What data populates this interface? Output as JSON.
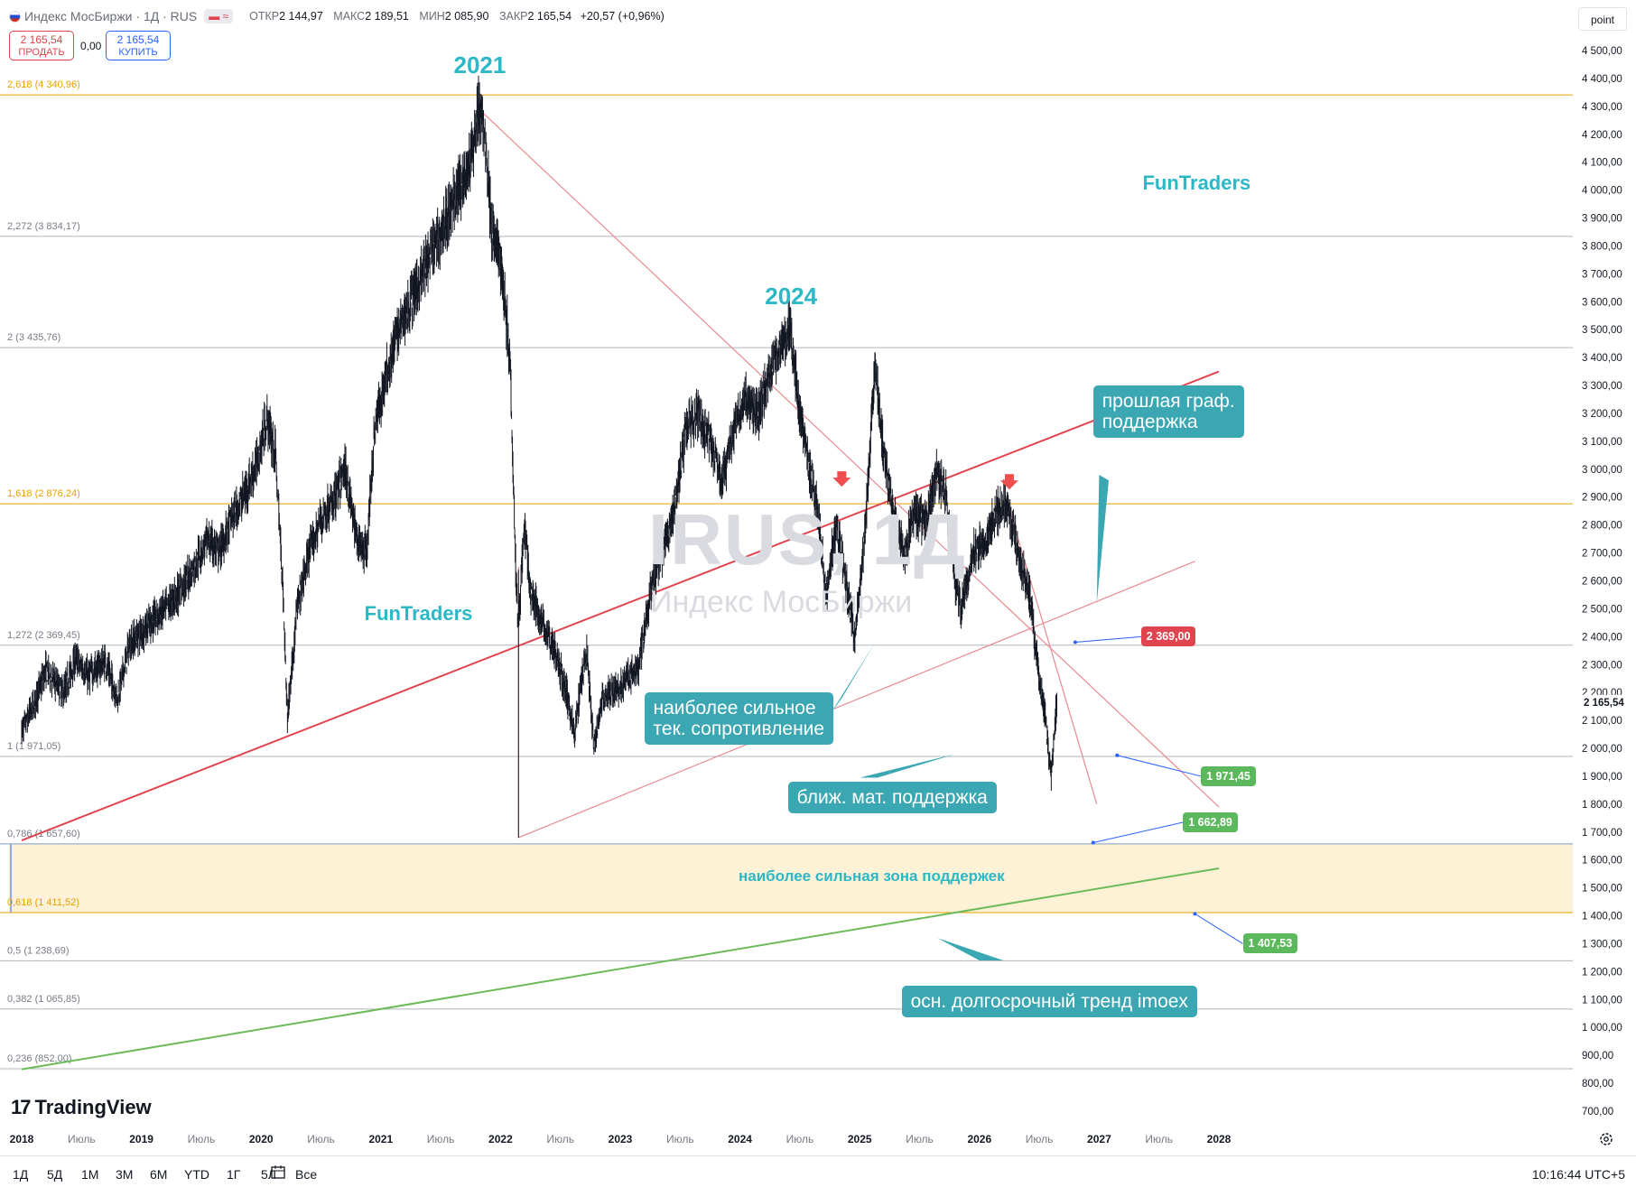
{
  "header": {
    "symbol_title": "Индекс МосБиржи · 1Д · RUS",
    "pill_label": "▬ ≈",
    "open_label": "ОТКР",
    "open_value": "2 144,97",
    "high_label": "МАКС",
    "high_value": "2 189,51",
    "low_label": "МИН",
    "low_value": "2 085,90",
    "close_label": "ЗАКР",
    "close_value": "2 165,54",
    "change_value": "+20,57 (+0,96%)"
  },
  "trade": {
    "sell_price": "2 165,54",
    "sell_label": "ПРОДАТЬ",
    "spread": "0,00",
    "buy_price": "2 165,54",
    "buy_label": "КУПИТЬ"
  },
  "toolbar": {
    "point_button": "point"
  },
  "watermark": {
    "symbol": "IRUS, 1Д",
    "name": "Индекс МосБиржи"
  },
  "brand": {
    "logo_text": "TradingView"
  },
  "bottom": {
    "timeframes": [
      "1Д",
      "5Д",
      "1М",
      "3М",
      "6М",
      "YTD",
      "1Г",
      "5Л",
      "Все"
    ],
    "clock": "10:16:44 UTC+5"
  },
  "colors": {
    "candle": "#131722",
    "fib_gold": "#e8a000",
    "fib_gray": "#787b86",
    "trend_red": "#e0454f",
    "trend_pink": "#e88a90",
    "trend_green": "#6cbb5a",
    "zone_fill": "#fdf1d6",
    "accent_teal": "#2cb8c6"
  },
  "chart_data": {
    "type": "candlestick",
    "title": "",
    "xlabel": "",
    "ylabel": "",
    "x_tick_labels": [
      "2018",
      "Июль",
      "2019",
      "Июль",
      "2020",
      "Июль",
      "2021",
      "Июль",
      "2022",
      "Июль",
      "2023",
      "Июль",
      "2024",
      "Июль",
      "2025",
      "Июль",
      "2026",
      "Июль",
      "2027",
      "Июль",
      "2028"
    ],
    "x_tick_years": [
      2018,
      2018.5,
      2019,
      2019.5,
      2020,
      2020.5,
      2021,
      2021.5,
      2022,
      2022.5,
      2023,
      2023.5,
      2024,
      2024.5,
      2025,
      2025.5,
      2026,
      2026.5,
      2027,
      2027.5,
      2028
    ],
    "y_ticks": [
      700,
      800,
      900,
      1000,
      1100,
      1200,
      1300,
      1400,
      1500,
      1600,
      1700,
      1800,
      1900,
      2000,
      2100,
      2200,
      2300,
      2400,
      2500,
      2600,
      2700,
      2800,
      2900,
      3000,
      3100,
      3200,
      3300,
      3400,
      3500,
      3600,
      3700,
      3800,
      3900,
      4000,
      4100,
      4200,
      4300,
      4400,
      4500
    ],
    "y_tick_labels": [
      "700,00",
      "800,00",
      "900,00",
      "1 000,00",
      "1 100,00",
      "1 200,00",
      "1 300,00",
      "1 400,00",
      "1 500,00",
      "1 600,00",
      "1 700,00",
      "1 800,00",
      "1 900,00",
      "2 000,00",
      "2 100,00",
      "2 200,00",
      "2 300,00",
      "2 400,00",
      "2 500,00",
      "2 600,00",
      "2 700,00",
      "2 800,00",
      "2 900,00",
      "3 000,00",
      "3 100,00",
      "3 200,00",
      "3 300,00",
      "3 400,00",
      "3 500,00",
      "3 600,00",
      "3 700,00",
      "3 800,00",
      "3 900,00",
      "4 000,00",
      "4 100,00",
      "4 200,00",
      "4 300,00",
      "4 400,00",
      "4 500,00"
    ],
    "current_price": 2165.54,
    "current_price_label": "2 165,54",
    "price_path": [
      [
        2018.0,
        2060
      ],
      [
        2018.1,
        2150
      ],
      [
        2018.2,
        2280
      ],
      [
        2018.35,
        2200
      ],
      [
        2018.45,
        2320
      ],
      [
        2018.55,
        2260
      ],
      [
        2018.7,
        2310
      ],
      [
        2018.8,
        2180
      ],
      [
        2018.9,
        2370
      ],
      [
        2019.05,
        2440
      ],
      [
        2019.2,
        2500
      ],
      [
        2019.35,
        2580
      ],
      [
        2019.45,
        2660
      ],
      [
        2019.55,
        2750
      ],
      [
        2019.65,
        2700
      ],
      [
        2019.75,
        2820
      ],
      [
        2019.85,
        2900
      ],
      [
        2019.95,
        3000
      ],
      [
        2020.05,
        3180
      ],
      [
        2020.12,
        3050
      ],
      [
        2020.18,
        2600
      ],
      [
        2020.22,
        2110
      ],
      [
        2020.3,
        2500
      ],
      [
        2020.4,
        2700
      ],
      [
        2020.5,
        2820
      ],
      [
        2020.6,
        2880
      ],
      [
        2020.7,
        3000
      ],
      [
        2020.8,
        2750
      ],
      [
        2020.88,
        2700
      ],
      [
        2020.95,
        3150
      ],
      [
        2021.05,
        3350
      ],
      [
        2021.15,
        3500
      ],
      [
        2021.25,
        3600
      ],
      [
        2021.35,
        3700
      ],
      [
        2021.45,
        3800
      ],
      [
        2021.55,
        3900
      ],
      [
        2021.65,
        4000
      ],
      [
        2021.75,
        4100
      ],
      [
        2021.82,
        4290
      ],
      [
        2021.87,
        4200
      ],
      [
        2021.93,
        3850
      ],
      [
        2022.0,
        3750
      ],
      [
        2022.08,
        3400
      ],
      [
        2022.13,
        2600
      ],
      [
        2022.15,
        2450
      ],
      [
        2022.2,
        2800
      ],
      [
        2022.25,
        2550
      ],
      [
        2022.35,
        2450
      ],
      [
        2022.45,
        2350
      ],
      [
        2022.55,
        2200
      ],
      [
        2022.62,
        2050
      ],
      [
        2022.68,
        2270
      ],
      [
        2022.72,
        2350
      ],
      [
        2022.78,
        2000
      ],
      [
        2022.85,
        2180
      ],
      [
        2022.95,
        2200
      ],
      [
        2023.05,
        2250
      ],
      [
        2023.15,
        2280
      ],
      [
        2023.25,
        2550
      ],
      [
        2023.35,
        2700
      ],
      [
        2023.45,
        2850
      ],
      [
        2023.55,
        3150
      ],
      [
        2023.65,
        3200
      ],
      [
        2023.75,
        3100
      ],
      [
        2023.85,
        2950
      ],
      [
        2023.95,
        3150
      ],
      [
        2024.05,
        3250
      ],
      [
        2024.15,
        3200
      ],
      [
        2024.25,
        3350
      ],
      [
        2024.35,
        3450
      ],
      [
        2024.42,
        3500
      ],
      [
        2024.5,
        3200
      ],
      [
        2024.58,
        3000
      ],
      [
        2024.65,
        2850
      ],
      [
        2024.72,
        2550
      ],
      [
        2024.8,
        2800
      ],
      [
        2024.85,
        2700
      ],
      [
        2024.9,
        2550
      ],
      [
        2024.96,
        2400
      ],
      [
        2025.05,
        2800
      ],
      [
        2025.1,
        3200
      ],
      [
        2025.13,
        3380
      ],
      [
        2025.2,
        3050
      ],
      [
        2025.3,
        2800
      ],
      [
        2025.38,
        2700
      ],
      [
        2025.45,
        2850
      ],
      [
        2025.55,
        2800
      ],
      [
        2025.65,
        3000
      ],
      [
        2025.72,
        2900
      ],
      [
        2025.8,
        2600
      ],
      [
        2025.85,
        2500
      ],
      [
        2025.95,
        2700
      ],
      [
        2026.05,
        2750
      ],
      [
        2026.15,
        2850
      ],
      [
        2026.22,
        2880
      ],
      [
        2026.28,
        2800
      ],
      [
        2026.35,
        2650
      ],
      [
        2026.42,
        2550
      ],
      [
        2026.5,
        2250
      ],
      [
        2026.55,
        2100
      ],
      [
        2026.6,
        1900
      ],
      [
        2026.63,
        2090
      ],
      [
        2026.65,
        2165.54
      ]
    ],
    "fib_levels": [
      {
        "label": "2,618 (4 340,96)",
        "value": 4340.96,
        "color": "gold"
      },
      {
        "label": "2,272 (3 834,17)",
        "value": 3834.17,
        "color": "gray"
      },
      {
        "label": "2 (3 435,76)",
        "value": 3435.76,
        "color": "gray"
      },
      {
        "label": "1,618 (2 876,24)",
        "value": 2876.24,
        "color": "gold"
      },
      {
        "label": "1,272 (2 369,45)",
        "value": 2369.45,
        "color": "gray"
      },
      {
        "label": "1 (1 971,05)",
        "value": 1971.05,
        "color": "gray"
      },
      {
        "label": "0,786 (1 657,60)",
        "value": 1657.6,
        "color": "gray"
      },
      {
        "label": "0,618 (1 411,52)",
        "value": 1411.52,
        "color": "gold"
      },
      {
        "label": "0,5 (1 238,69)",
        "value": 1238.69,
        "color": "gray"
      },
      {
        "label": "0,382 (1 065,85)",
        "value": 1065.85,
        "color": "gray"
      },
      {
        "label": "0,236 (852,00)",
        "value": 852.0,
        "color": "gray"
      }
    ],
    "support_zone": {
      "from": 1411.52,
      "to": 1657.6,
      "label": "наиболее сильная зона поддержек"
    },
    "trend_lines": [
      {
        "name": "red-main",
        "p1": [
          2018.0,
          1670
        ],
        "p2": [
          2028.0,
          3350
        ],
        "color": "trend_red"
      },
      {
        "name": "pink-lower",
        "p1": [
          2022.15,
          1680
        ],
        "p2": [
          2027.8,
          2670
        ],
        "color": "trend_pink"
      },
      {
        "name": "pink-desc",
        "p1": [
          2021.82,
          4290
        ],
        "p2": [
          2028.0,
          1790
        ],
        "color": "trend_pink"
      },
      {
        "name": "pink-2022",
        "p1": [
          2022.15,
          1680
        ],
        "p2": [
          2022.15,
          2650
        ],
        "color": "trend_pink"
      },
      {
        "name": "pink-proj",
        "p1": [
          2026.22,
          2900
        ],
        "p2": [
          2026.98,
          1800
        ],
        "color": "trend_pink"
      },
      {
        "name": "green-long",
        "p1": [
          2018.0,
          850
        ],
        "p2": [
          2028.0,
          1570
        ],
        "color": "trend_green"
      }
    ],
    "price_tags": [
      {
        "label": "2 369,00",
        "value": 2369.0,
        "color": "trend_red",
        "anchor": [
          2026.8,
          2380
        ],
        "tag_at": [
          2027.35,
          2400
        ]
      },
      {
        "label": "1 971,45",
        "value": 1971.45,
        "color": "trend_green",
        "anchor": [
          2027.15,
          1975
        ],
        "tag_at": [
          2027.85,
          1900
        ]
      },
      {
        "label": "1 662,89",
        "value": 1662.89,
        "color": "trend_green",
        "anchor": [
          2026.95,
          1662
        ],
        "tag_at": [
          2027.7,
          1735
        ]
      },
      {
        "label": "1 407,53",
        "value": 1407.53,
        "color": "trend_green",
        "anchor": [
          2027.8,
          1407
        ],
        "tag_at": [
          2028.2,
          1300
        ]
      }
    ],
    "arrows": [
      {
        "at": [
          2024.85,
          2960
        ],
        "color": "#f04e4e"
      },
      {
        "at": [
          2026.25,
          2950
        ],
        "color": "#f04e4e"
      }
    ],
    "annotations": [
      {
        "text": "2021",
        "at": [
          2021.85,
          4450
        ]
      },
      {
        "text": "2024",
        "at": [
          2024.45,
          3625
        ]
      },
      {
        "text": "FunTraders",
        "at": [
          2027.8,
          4020
        ]
      },
      {
        "text": "FunTraders",
        "at": [
          2021.3,
          2480
        ]
      }
    ],
    "callouts": [
      {
        "name": "prev-support",
        "lines": [
          "прошлая граф.",
          "поддержка"
        ],
        "box": [
          2026.95,
          3300
        ]
      },
      {
        "name": "strongest-resistance",
        "lines": [
          "наиболее сильное",
          "тек. сопротивление"
        ],
        "box": [
          2023.2,
          2200
        ]
      },
      {
        "name": "nearest-support",
        "lines": [
          "ближ. мат. поддержка"
        ],
        "box": [
          2024.4,
          1880
        ]
      },
      {
        "name": "long-trend",
        "lines": [
          "осн. долгосрочный тренд imoex"
        ],
        "box": [
          2025.35,
          1150
        ]
      }
    ]
  }
}
